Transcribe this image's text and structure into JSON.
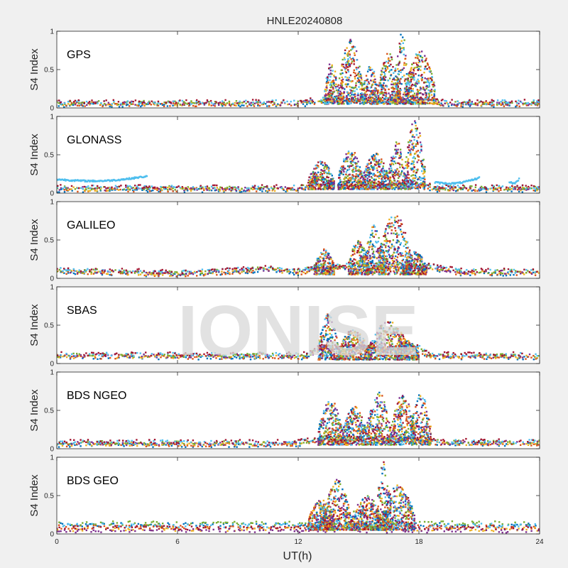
{
  "chart_data": {
    "type": "scatter",
    "title": "HNLE20240808",
    "xlabel": "UT(h)",
    "ylabel": "S4 Index",
    "xlim": [
      0,
      24
    ],
    "ylim": [
      0,
      1
    ],
    "xticks": [
      0,
      6,
      12,
      18,
      24
    ],
    "xtick_labels": [
      "0",
      "6",
      "12",
      "18",
      "24"
    ],
    "yticks": [
      0,
      0.5,
      1
    ],
    "ytick_labels": [
      "0",
      "0.5",
      "1"
    ],
    "watermark": "IONISE",
    "series_colors": [
      "#0072BD",
      "#D95319",
      "#EDB120",
      "#7E2F8E",
      "#77AC30",
      "#4DBEEE",
      "#A2142F"
    ],
    "panels": [
      {
        "label": "GPS",
        "background": [
          [
            0,
            0.06
          ],
          [
            12,
            0.06
          ],
          [
            13.3,
            0.1
          ],
          [
            18.5,
            0.1
          ],
          [
            19,
            0.06
          ],
          [
            24,
            0.06
          ]
        ],
        "bursts": [
          {
            "x": [
              13.3,
              14.0
            ],
            "y_max": 0.6
          },
          {
            "x": [
              14.0,
              15.2
            ],
            "y_max": 0.9
          },
          {
            "x": [
              15.2,
              16.0
            ],
            "y_max": 0.55
          },
          {
            "x": [
              16.0,
              17.0
            ],
            "y_max": 0.75
          },
          {
            "x": [
              16.8,
              17.5
            ],
            "y_max": 1.0
          },
          {
            "x": [
              17.3,
              18.8
            ],
            "y_max": 0.75
          }
        ]
      },
      {
        "label": "GLONASS",
        "background": [
          [
            0,
            0.06
          ],
          [
            12,
            0.06
          ],
          [
            12.5,
            0.1
          ],
          [
            18.3,
            0.1
          ],
          [
            18.8,
            0.06
          ],
          [
            24,
            0.06
          ]
        ],
        "tracks": [
          [
            0,
            0.18
          ],
          [
            4.5,
            0.22
          ],
          [
            18.8,
            0.14
          ],
          [
            21.0,
            0.2
          ],
          [
            22.5,
            0.15
          ],
          [
            23.0,
            0.19
          ]
        ],
        "bursts": [
          {
            "x": [
              12.5,
              13.8
            ],
            "y_max": 0.42
          },
          {
            "x": [
              14.0,
              15.2
            ],
            "y_max": 0.58
          },
          {
            "x": [
              15.2,
              16.5
            ],
            "y_max": 0.52
          },
          {
            "x": [
              16.5,
              17.3
            ],
            "y_max": 0.7
          },
          {
            "x": [
              17.3,
              18.3
            ],
            "y_max": 0.95
          }
        ]
      },
      {
        "label": "GALILEO",
        "background": [
          [
            0,
            0.1
          ],
          [
            6,
            0.06
          ],
          [
            10.5,
            0.12
          ],
          [
            12,
            0.08
          ],
          [
            13,
            0.15
          ],
          [
            18.5,
            0.15
          ],
          [
            20,
            0.08
          ],
          [
            24,
            0.08
          ]
        ],
        "bursts": [
          {
            "x": [
              12.8,
              13.8
            ],
            "y_max": 0.38
          },
          {
            "x": [
              14.5,
              15.5
            ],
            "y_max": 0.5
          },
          {
            "x": [
              15.3,
              16.3
            ],
            "y_max": 0.7
          },
          {
            "x": [
              16.0,
              17.6
            ],
            "y_max": 0.85
          },
          {
            "x": [
              17.2,
              18.4
            ],
            "y_max": 0.35
          }
        ]
      },
      {
        "label": "SBAS",
        "background": [
          [
            0,
            0.1
          ],
          [
            12.5,
            0.1
          ],
          [
            13,
            0.2
          ],
          [
            18,
            0.2
          ],
          [
            18.5,
            0.1
          ],
          [
            24,
            0.1
          ]
        ],
        "bursts": [
          {
            "x": [
              13.0,
              14.0
            ],
            "y_max": 0.65
          },
          {
            "x": [
              14.0,
              15.5
            ],
            "y_max": 0.45
          },
          {
            "x": [
              15.5,
              17.5
            ],
            "y_max": 0.55
          },
          {
            "x": [
              16.8,
              18.0
            ],
            "y_max": 0.3
          }
        ]
      },
      {
        "label": "BDS NGEO",
        "background": [
          [
            0,
            0.07
          ],
          [
            12,
            0.07
          ],
          [
            13,
            0.12
          ],
          [
            18.3,
            0.12
          ],
          [
            19,
            0.08
          ],
          [
            24,
            0.08
          ]
        ],
        "bursts": [
          {
            "x": [
              13.0,
              14.2
            ],
            "y_max": 0.65
          },
          {
            "x": [
              14.2,
              15.4
            ],
            "y_max": 0.55
          },
          {
            "x": [
              15.4,
              16.6
            ],
            "y_max": 0.75
          },
          {
            "x": [
              16.6,
              17.8
            ],
            "y_max": 0.7
          },
          {
            "x": [
              17.6,
              18.6
            ],
            "y_max": 0.72
          }
        ]
      },
      {
        "label": "BDS GEO",
        "levels": [
          0.12,
          0.09,
          0.06,
          0.04,
          0.14,
          0.11,
          0.08
        ],
        "bursts": [
          {
            "x": [
              12.5,
              13.8
            ],
            "y_max": 0.45
          },
          {
            "x": [
              13.3,
              14.6
            ],
            "y_max": 0.72
          },
          {
            "x": [
              14.6,
              16.2
            ],
            "y_max": 0.5
          },
          {
            "x": [
              15.9,
              16.6
            ],
            "y_max": 0.95
          },
          {
            "x": [
              16.2,
              17.8
            ],
            "y_max": 0.65
          }
        ]
      }
    ]
  }
}
